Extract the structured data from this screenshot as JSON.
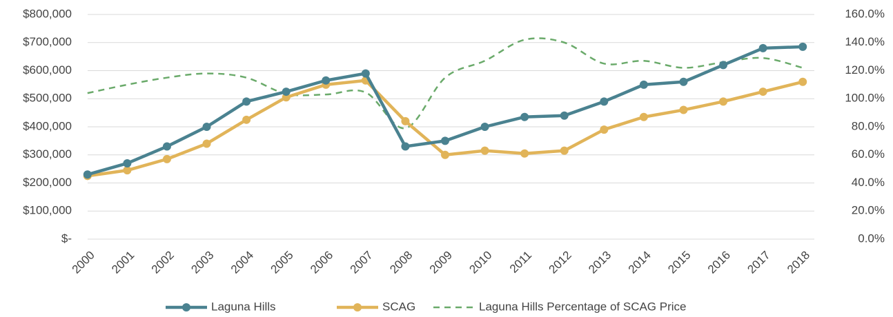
{
  "chart_data": {
    "type": "line",
    "categories": [
      "2000",
      "2001",
      "2002",
      "2003",
      "2004",
      "2005",
      "2006",
      "2007",
      "2008",
      "2009",
      "2010",
      "2011",
      "2012",
      "2013",
      "2014",
      "2015",
      "2016",
      "2017",
      "2018"
    ],
    "series": [
      {
        "name": "Laguna Hills",
        "color": "#4a8290",
        "values": [
          230000,
          270000,
          330000,
          400000,
          490000,
          525000,
          565000,
          590000,
          330000,
          350000,
          400000,
          435000,
          440000,
          490000,
          550000,
          560000,
          620000,
          680000,
          685000
        ]
      },
      {
        "name": "SCAG",
        "color": "#e1b459",
        "values": [
          225000,
          245000,
          285000,
          340000,
          425000,
          505000,
          550000,
          565000,
          420000,
          300000,
          315000,
          305000,
          315000,
          390000,
          435000,
          460000,
          490000,
          525000,
          560000
        ]
      },
      {
        "name": "Laguna Hills Percentage of SCAG Price",
        "color": "#6aaa6a",
        "axis": "y2",
        "dashed": true,
        "values": [
          104,
          110,
          115,
          118,
          115,
          103.5,
          103,
          104.5,
          79,
          115,
          127,
          142,
          140,
          125,
          127,
          122,
          126,
          129,
          122
        ]
      }
    ],
    "ylim": [
      0,
      800000
    ],
    "yticks": [
      {
        "value": 0,
        "label": "$-"
      },
      {
        "value": 100000,
        "label": "$100,000"
      },
      {
        "value": 200000,
        "label": "$200,000"
      },
      {
        "value": 300000,
        "label": "$300,000"
      },
      {
        "value": 400000,
        "label": "$400,000"
      },
      {
        "value": 500000,
        "label": "$500,000"
      },
      {
        "value": 600000,
        "label": "$600,000"
      },
      {
        "value": 700000,
        "label": "$700,000"
      },
      {
        "value": 800000,
        "label": "$800,000"
      }
    ],
    "y2lim": [
      0,
      160
    ],
    "y2ticks": [
      {
        "value": 0,
        "label": "0.0%"
      },
      {
        "value": 20,
        "label": "20.0%"
      },
      {
        "value": 40,
        "label": "40.0%"
      },
      {
        "value": 60,
        "label": "60.0%"
      },
      {
        "value": 80,
        "label": "80.0%"
      },
      {
        "value": 100,
        "label": "100.0%"
      },
      {
        "value": 120,
        "label": "120.0%"
      },
      {
        "value": 140,
        "label": "140.0%"
      },
      {
        "value": 160,
        "label": "160.0%"
      }
    ],
    "grid": true,
    "legend": "bottom"
  }
}
